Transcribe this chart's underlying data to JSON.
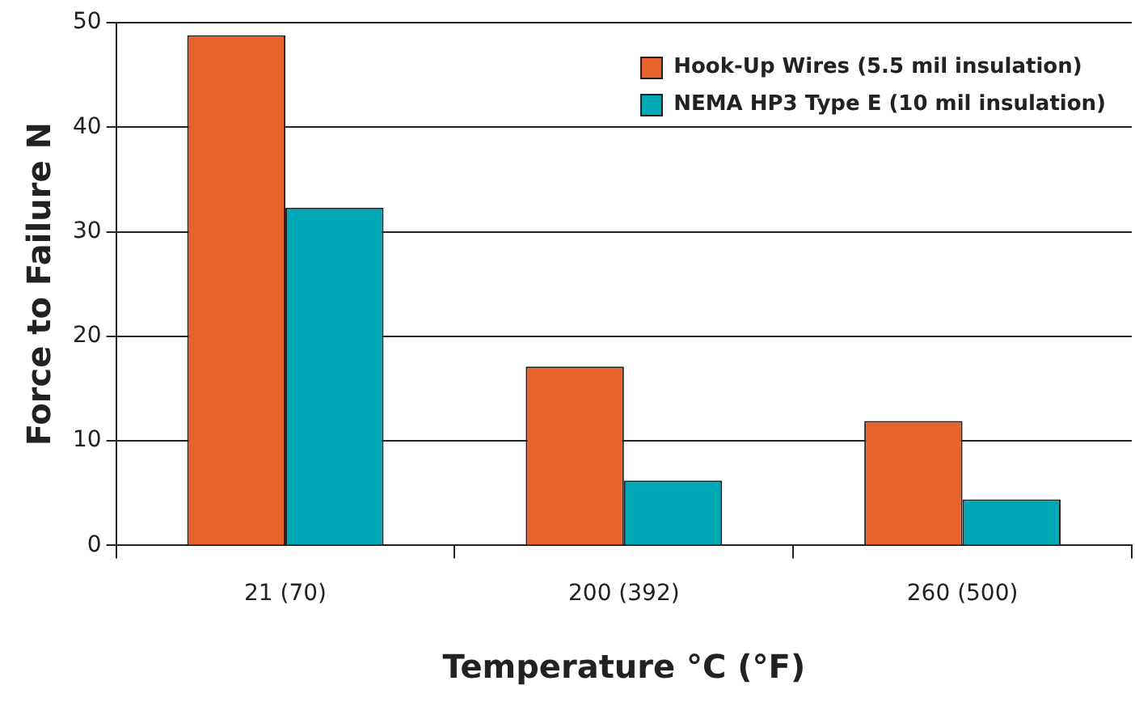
{
  "chart_data": {
    "type": "bar",
    "xlabel": "Temperature °C (°F)",
    "ylabel": "Force to Failure N",
    "categories": [
      "21 (70)",
      "200 (392)",
      "260 (500)"
    ],
    "series": [
      {
        "name": "Hook-Up Wires (5.5 mil insulation)",
        "color": "#e8622c",
        "values": [
          48.8,
          17.1,
          11.9
        ]
      },
      {
        "name": "NEMA HP3 Type E (10 mil insulation)",
        "color": "#00a7b5",
        "values": [
          32.3,
          6.2,
          4.4
        ]
      }
    ],
    "ylim": [
      0,
      50
    ],
    "yticks": [
      0,
      10,
      20,
      30,
      40,
      50
    ],
    "grid": "y",
    "legend": "top right"
  }
}
